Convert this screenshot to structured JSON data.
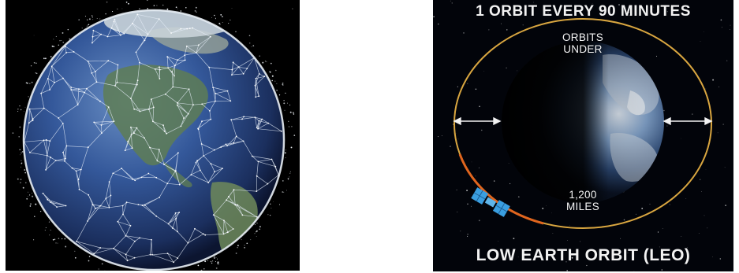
{
  "left_image": {
    "description_icon": "satellite-mesh-earth-icon"
  },
  "right_image": {
    "top_caption": "1 ORBIT EVERY 90 MINUTES",
    "orbits_label_line1": "ORBITS",
    "orbits_label_line2": "UNDER",
    "distance_line1": "1,200",
    "distance_line2": "MILES",
    "bottom_caption": "LOW EARTH ORBIT (LEO)",
    "colors": {
      "orbit_ring": "#d9a640",
      "orbit_trail": "#e0651e",
      "satellite": "#3a9ee0"
    }
  }
}
